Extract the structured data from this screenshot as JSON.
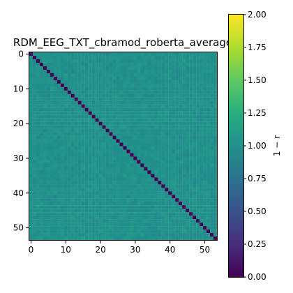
{
  "chart_data": {
    "type": "heatmap",
    "title": "RDM_EEG_TXT_cbramod_roberta_average",
    "rows": 54,
    "cols": 54,
    "x_ticks": [
      0,
      10,
      20,
      30,
      40,
      50
    ],
    "y_ticks": [
      0,
      10,
      20,
      30,
      40,
      50
    ],
    "diagonal_value": 0.0,
    "off_diagonal_mean": 1.0,
    "off_diagonal_range": [
      0.9,
      1.1
    ],
    "colormap": "viridis",
    "vmin": 0.0,
    "vmax": 2.0,
    "colorbar": {
      "label": "1 − r",
      "ticks": [
        "0.00",
        "0.25",
        "0.50",
        "0.75",
        "1.00",
        "1.25",
        "1.50",
        "1.75",
        "2.00"
      ],
      "tick_values": [
        0,
        0.25,
        0.5,
        0.75,
        1.0,
        1.25,
        1.5,
        1.75,
        2.0
      ]
    },
    "grid": false
  }
}
